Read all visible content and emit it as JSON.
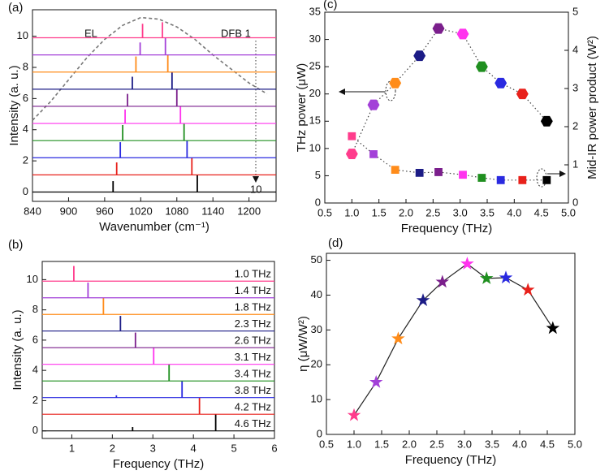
{
  "chart_data": [
    {
      "type": "spectra",
      "panel_label": "(a)",
      "xlabel": "Wavenumber (cm⁻¹)",
      "ylabel": "Intensity (a. u.)",
      "xlim": [
        840,
        1245
      ],
      "xticks": [
        840,
        900,
        960,
        1020,
        1080,
        1140,
        1200
      ],
      "ylim": [
        -0.6,
        11.7
      ],
      "yticks": [
        0,
        2,
        4,
        6,
        8,
        10
      ],
      "annotations": [
        "EL",
        "DFB 1",
        "10"
      ],
      "envelope": {
        "color": "#777777",
        "x": [
          840,
          870,
          900,
          930,
          960,
          990,
          1020,
          1050,
          1080,
          1110,
          1140,
          1170,
          1200,
          1230
        ],
        "values": [
          4.6,
          5.8,
          7.2,
          8.6,
          9.8,
          10.7,
          11.2,
          11.1,
          10.6,
          9.8,
          8.8,
          7.9,
          7.0,
          6.3
        ]
      },
      "series": [
        {
          "color": "#000000",
          "baseline": 0,
          "peaks": [
            974,
            1114
          ],
          "peak_values": [
            0.7,
            1.1
          ]
        },
        {
          "color": "#e8211b",
          "baseline": 1.1,
          "peaks": [
            980,
            1105
          ],
          "peak_values": [
            1.9,
            2.2
          ]
        },
        {
          "color": "#2a2ae0",
          "baseline": 2.2,
          "peaks": [
            986,
            1097
          ],
          "peak_values": [
            3.2,
            3.3
          ]
        },
        {
          "color": "#1f8f1f",
          "baseline": 3.3,
          "peaks": [
            990,
            1092
          ],
          "peak_values": [
            4.3,
            4.4
          ]
        },
        {
          "color": "#ff33ee",
          "baseline": 4.4,
          "peaks": [
            994,
            1086
          ],
          "peak_values": [
            5.3,
            5.5
          ]
        },
        {
          "color": "#7b1f8c",
          "baseline": 5.5,
          "peaks": [
            998,
            1080
          ],
          "peak_values": [
            6.3,
            6.6
          ]
        },
        {
          "color": "#1c1c86",
          "baseline": 6.6,
          "peaks": [
            1006,
            1072
          ],
          "peak_values": [
            7.4,
            7.7
          ]
        },
        {
          "color": "#ff8c1a",
          "baseline": 7.7,
          "peaks": [
            1012,
            1065
          ],
          "peak_values": [
            8.7,
            8.8
          ]
        },
        {
          "color": "#a340d8",
          "baseline": 8.8,
          "peaks": [
            1019,
            1061
          ],
          "peak_values": [
            9.6,
            9.9
          ]
        },
        {
          "color": "#ff3c8c",
          "baseline": 9.9,
          "peaks": [
            1023,
            1056
          ],
          "peak_values": [
            10.8,
            10.9
          ]
        }
      ]
    },
    {
      "type": "spectra",
      "panel_label": "(b)",
      "xlabel": "Frequency (THz)",
      "ylabel": "Intensity (a. u.)",
      "xlim": [
        0.27,
        6
      ],
      "xticks": [
        1,
        2,
        3,
        4,
        5,
        6
      ],
      "ylim": [
        -0.5,
        11.2
      ],
      "yticks": [
        0,
        2,
        4,
        6,
        8,
        10
      ],
      "series": [
        {
          "name": "4.6 THz",
          "color": "#000000",
          "baseline": 0,
          "peaks": [
            2.5,
            4.55
          ],
          "peak_values": [
            0.25,
            1.1
          ]
        },
        {
          "name": "4.2 THz",
          "color": "#e8211b",
          "baseline": 1.1,
          "peaks": [
            4.15
          ],
          "peak_values": [
            2.2
          ]
        },
        {
          "name": "3.8 THz",
          "color": "#2a2ae0",
          "baseline": 2.2,
          "peaks": [
            2.1,
            3.72
          ],
          "peak_values": [
            2.35,
            3.3
          ]
        },
        {
          "name": "3.4 THz",
          "color": "#1f8f1f",
          "baseline": 3.3,
          "peaks": [
            3.4
          ],
          "peak_values": [
            4.4
          ]
        },
        {
          "name": "3.1 THz",
          "color": "#ff33ee",
          "baseline": 4.4,
          "peaks": [
            3.02
          ],
          "peak_values": [
            5.5
          ]
        },
        {
          "name": "2.6 THz",
          "color": "#7b1f8c",
          "baseline": 5.5,
          "peaks": [
            2.57
          ],
          "peak_values": [
            6.5
          ]
        },
        {
          "name": "2.3 THz",
          "color": "#1c1c86",
          "baseline": 6.6,
          "peaks": [
            2.2
          ],
          "peak_values": [
            7.6
          ]
        },
        {
          "name": "1.8 THz",
          "color": "#ff8c1a",
          "baseline": 7.7,
          "peaks": [
            1.78
          ],
          "peak_values": [
            8.8
          ]
        },
        {
          "name": "1.4 THz",
          "color": "#a340d8",
          "baseline": 8.8,
          "peaks": [
            1.4
          ],
          "peak_values": [
            9.8
          ]
        },
        {
          "name": "1.0 THz",
          "color": "#ff3c8c",
          "baseline": 9.9,
          "peaks": [
            1.05
          ],
          "peak_values": [
            10.9
          ]
        }
      ]
    },
    {
      "type": "scatter",
      "panel_label": "(c)",
      "xlabel": "Frequency (THz)",
      "ylabel": "THz power (μW)",
      "y2label": "Mid-IR power product (W²)",
      "xlim": [
        0.5,
        5
      ],
      "xticks": [
        0.5,
        {
          "value": 1,
          "label": "1.0"
        },
        1.5,
        {
          "value": 2,
          "label": "2.0"
        },
        2.5,
        {
          "value": 3,
          "label": "3.0"
        },
        3.5,
        {
          "value": 4,
          "label": "4.0"
        },
        4.5,
        {
          "value": 5,
          "label": "5.0"
        }
      ],
      "ylim": [
        0,
        35
      ],
      "yticks": [
        0,
        5,
        10,
        15,
        20,
        25,
        30,
        35
      ],
      "y2lim": [
        0,
        5
      ],
      "y2ticks": [
        0,
        1,
        2,
        3,
        4,
        5
      ],
      "x": [
        1.0,
        1.4,
        1.8,
        2.25,
        2.6,
        3.05,
        3.4,
        3.75,
        4.15,
        4.6
      ],
      "colors": [
        "#ff3c8c",
        "#a340d8",
        "#ff8c1a",
        "#1c1c86",
        "#7b1f8c",
        "#ff33ee",
        "#1f8f1f",
        "#2a2ae0",
        "#e8211b",
        "#000000"
      ],
      "line_color": "#444444",
      "series": [
        {
          "marker": "hexagon",
          "values": [
            9,
            18,
            22,
            27,
            32,
            31,
            25,
            22,
            20,
            15
          ]
        },
        {
          "marker": "square",
          "axis": "y2",
          "values": [
            1.75,
            1.28,
            0.87,
            0.79,
            0.81,
            0.74,
            0.66,
            0.6,
            0.6,
            0.6
          ]
        }
      ]
    },
    {
      "type": "scatter",
      "panel_label": "(d)",
      "xlabel": "Frequency (THz)",
      "ylabel": "η (μW/W²)",
      "xlim": [
        0.5,
        5
      ],
      "xticks": [
        0.5,
        {
          "value": 1,
          "label": "1.0"
        },
        1.5,
        {
          "value": 2,
          "label": "2.0"
        },
        2.5,
        {
          "value": 3,
          "label": "3.0"
        },
        3.5,
        {
          "value": 4,
          "label": "4.0"
        },
        4.5,
        {
          "value": 5,
          "label": "5.0"
        }
      ],
      "ylim": [
        0,
        52
      ],
      "yticks": [
        0,
        10,
        20,
        30,
        40,
        50
      ],
      "x": [
        1.0,
        1.4,
        1.8,
        2.25,
        2.6,
        3.05,
        3.4,
        3.75,
        4.15,
        4.6
      ],
      "colors": [
        "#ff3c8c",
        "#a340d8",
        "#ff8c1a",
        "#1c1c86",
        "#7b1f8c",
        "#ff33ee",
        "#1f8f1f",
        "#2a2ae0",
        "#e8211b",
        "#000000"
      ],
      "line_color": "#222222",
      "line_style": "solid",
      "series": [
        {
          "marker": "star",
          "values": [
            5.5,
            15,
            27.5,
            38.5,
            43.8,
            49,
            44.8,
            45,
            41.5,
            30.5
          ]
        }
      ]
    }
  ]
}
